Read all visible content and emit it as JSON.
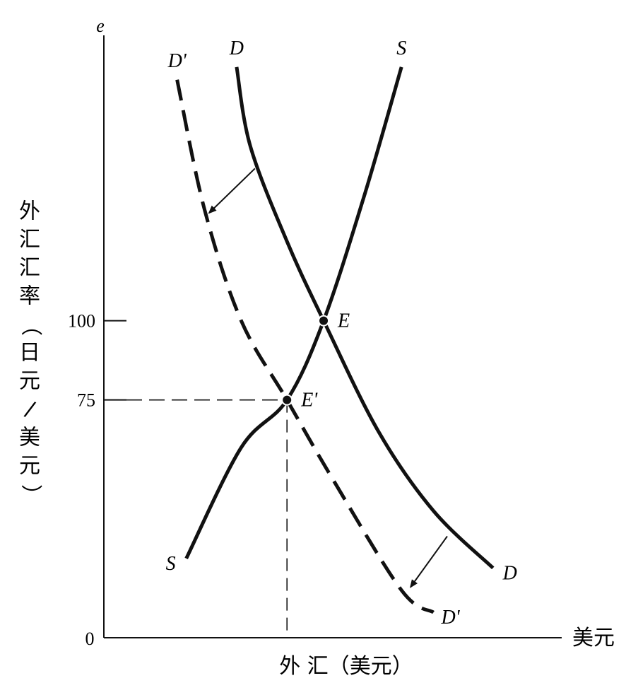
{
  "chart_data": {
    "type": "line",
    "y_axis": {
      "label": "外汇汇率（日元/美元）",
      "symbol": "e",
      "ticks": [
        {
          "label": "100",
          "value": 100
        },
        {
          "label": "75",
          "value": 75
        }
      ],
      "origin_label": "0",
      "range": [
        0,
        190
      ]
    },
    "x_axis": {
      "label": "外 汇（美元）",
      "end_label": "美元",
      "range": [
        0,
        10
      ]
    },
    "series": [
      {
        "name": "S",
        "style": "solid",
        "start_label": "S",
        "end_label": "S",
        "points": [
          [
            1.8,
            25
          ],
          [
            3.0,
            60
          ],
          [
            4.0,
            75
          ],
          [
            4.8,
            100
          ],
          [
            5.7,
            140
          ],
          [
            6.5,
            180
          ]
        ]
      },
      {
        "name": "D",
        "style": "solid",
        "start_label": "D",
        "end_label": "D",
        "points": [
          [
            2.9,
            180
          ],
          [
            3.2,
            155
          ],
          [
            4.0,
            125
          ],
          [
            4.8,
            100
          ],
          [
            6.0,
            65
          ],
          [
            7.2,
            40
          ],
          [
            8.5,
            22
          ]
        ]
      },
      {
        "name": "D'",
        "style": "dashed",
        "start_label": "D'",
        "end_label": "D'",
        "points": [
          [
            1.6,
            176
          ],
          [
            2.2,
            135
          ],
          [
            3.0,
            100
          ],
          [
            4.0,
            75
          ],
          [
            5.0,
            50
          ],
          [
            6.5,
            15
          ],
          [
            7.2,
            8
          ]
        ]
      }
    ],
    "points": [
      {
        "label": "E",
        "x": 4.8,
        "y": 100
      },
      {
        "label": "E'",
        "x": 4.0,
        "y": 75
      }
    ],
    "guides": [
      {
        "type": "horizontal",
        "y": 75,
        "x_to": 4.0
      },
      {
        "type": "vertical",
        "x": 4.0,
        "y_to": 75
      }
    ],
    "shift_arrows": [
      {
        "from": [
          3.3,
          148
        ],
        "to": [
          2.3,
          134
        ]
      },
      {
        "from": [
          7.5,
          32
        ],
        "to": [
          6.7,
          16
        ]
      }
    ]
  }
}
